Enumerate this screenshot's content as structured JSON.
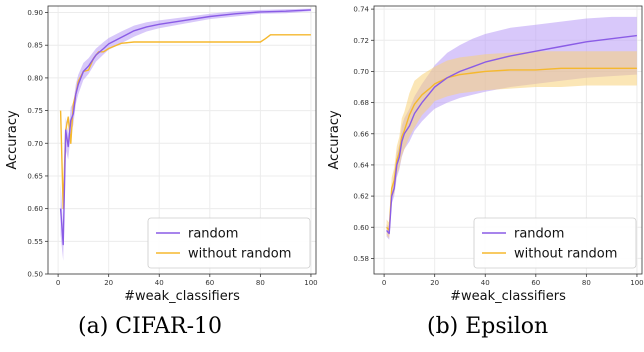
{
  "colors": {
    "random": "#8a5ce6",
    "random_band": "#b89af5",
    "without_random": "#f5b82e",
    "without_random_band": "#f8d27a",
    "grid": "#ececec",
    "axis": "#333333"
  },
  "chart_data": [
    {
      "type": "line",
      "caption": "(a) CIFAR-10",
      "xlabel": "#weak_classifiers",
      "ylabel": "Accuracy",
      "xlim": [
        -4,
        102
      ],
      "ylim": [
        0.5,
        0.91
      ],
      "xticks": [
        0,
        20,
        40,
        60,
        80,
        100
      ],
      "yticks": [
        0.5,
        0.55,
        0.6,
        0.65,
        0.7,
        0.75,
        0.8,
        0.85,
        0.9
      ],
      "ytick_labels": [
        "0.50",
        "0.55",
        "0.60",
        "0.65",
        "0.70",
        "0.75",
        "0.80",
        "0.85",
        "0.90"
      ],
      "grid": true,
      "legend": "bottom-right",
      "series": [
        {
          "name": "random",
          "color": "#8a5ce6",
          "x": [
            1,
            2,
            3,
            4,
            5,
            6,
            7,
            8,
            10,
            12,
            15,
            18,
            20,
            25,
            30,
            35,
            40,
            50,
            60,
            70,
            80,
            90,
            100
          ],
          "y": [
            0.6,
            0.545,
            0.72,
            0.695,
            0.735,
            0.745,
            0.775,
            0.79,
            0.81,
            0.818,
            0.835,
            0.845,
            0.852,
            0.862,
            0.872,
            0.878,
            0.882,
            0.888,
            0.894,
            0.898,
            0.901,
            0.902,
            0.904
          ],
          "lower": [
            0.56,
            0.52,
            0.69,
            0.675,
            0.715,
            0.728,
            0.76,
            0.775,
            0.797,
            0.806,
            0.825,
            0.836,
            0.843,
            0.853,
            0.863,
            0.871,
            0.876,
            0.883,
            0.89,
            0.894,
            0.898,
            0.899,
            0.902
          ],
          "upper": [
            0.64,
            0.57,
            0.74,
            0.715,
            0.755,
            0.762,
            0.79,
            0.805,
            0.823,
            0.83,
            0.845,
            0.855,
            0.861,
            0.871,
            0.88,
            0.885,
            0.888,
            0.893,
            0.898,
            0.902,
            0.904,
            0.905,
            0.906
          ]
        },
        {
          "name": "without random",
          "color": "#f5b82e",
          "x": [
            1,
            2,
            3,
            4,
            5,
            6,
            7,
            8,
            10,
            12,
            14,
            16,
            18,
            20,
            25,
            30,
            40,
            50,
            60,
            70,
            80,
            82,
            84,
            90,
            100
          ],
          "y": [
            0.75,
            0.6,
            0.72,
            0.74,
            0.7,
            0.76,
            0.775,
            0.795,
            0.81,
            0.812,
            0.83,
            0.84,
            0.84,
            0.845,
            0.853,
            0.855,
            0.855,
            0.855,
            0.855,
            0.855,
            0.855,
            0.86,
            0.866,
            0.866,
            0.866
          ]
        }
      ]
    },
    {
      "type": "line",
      "caption": "(b) Epsilon",
      "xlabel": "#weak_classifiers",
      "ylabel": "Accuracy",
      "xlim": [
        -4,
        102
      ],
      "ylim": [
        0.57,
        0.742
      ],
      "xticks": [
        0,
        20,
        40,
        60,
        80,
        100
      ],
      "yticks": [
        0.58,
        0.6,
        0.62,
        0.64,
        0.66,
        0.68,
        0.7,
        0.72,
        0.74
      ],
      "ytick_labels": [
        "0.58",
        "0.60",
        "0.62",
        "0.64",
        "0.66",
        "0.68",
        "0.70",
        "0.72",
        "0.74"
      ],
      "grid": true,
      "legend": "bottom-right",
      "series": [
        {
          "name": "random",
          "color": "#8a5ce6",
          "x": [
            1,
            2,
            3,
            4,
            5,
            6,
            7,
            8,
            10,
            12,
            15,
            18,
            20,
            25,
            30,
            35,
            40,
            50,
            60,
            70,
            80,
            90,
            100
          ],
          "y": [
            0.598,
            0.596,
            0.62,
            0.625,
            0.64,
            0.645,
            0.655,
            0.66,
            0.665,
            0.673,
            0.68,
            0.686,
            0.69,
            0.696,
            0.7,
            0.703,
            0.706,
            0.71,
            0.713,
            0.716,
            0.719,
            0.721,
            0.723
          ],
          "lower": [
            0.594,
            0.592,
            0.615,
            0.62,
            0.632,
            0.637,
            0.645,
            0.65,
            0.655,
            0.662,
            0.668,
            0.673,
            0.676,
            0.68,
            0.683,
            0.685,
            0.687,
            0.69,
            0.692,
            0.694,
            0.696,
            0.697,
            0.698
          ],
          "upper": [
            0.602,
            0.6,
            0.625,
            0.63,
            0.648,
            0.653,
            0.665,
            0.67,
            0.676,
            0.684,
            0.692,
            0.699,
            0.704,
            0.712,
            0.717,
            0.721,
            0.724,
            0.728,
            0.73,
            0.732,
            0.734,
            0.735,
            0.735
          ]
        },
        {
          "name": "without random",
          "color": "#f5b82e",
          "x": [
            1,
            2,
            3,
            4,
            5,
            6,
            7,
            8,
            10,
            12,
            15,
            18,
            20,
            25,
            30,
            35,
            40,
            50,
            60,
            70,
            80,
            90,
            100
          ],
          "y": [
            0.6,
            0.598,
            0.625,
            0.63,
            0.643,
            0.648,
            0.658,
            0.662,
            0.672,
            0.679,
            0.685,
            0.689,
            0.692,
            0.696,
            0.698,
            0.699,
            0.7,
            0.701,
            0.701,
            0.702,
            0.702,
            0.702,
            0.702
          ],
          "lower": [
            0.595,
            0.593,
            0.618,
            0.622,
            0.634,
            0.638,
            0.646,
            0.65,
            0.658,
            0.664,
            0.672,
            0.677,
            0.681,
            0.684,
            0.686,
            0.687,
            0.688,
            0.689,
            0.69,
            0.69,
            0.691,
            0.691,
            0.691
          ],
          "upper": [
            0.605,
            0.603,
            0.632,
            0.638,
            0.652,
            0.658,
            0.67,
            0.674,
            0.686,
            0.694,
            0.698,
            0.701,
            0.703,
            0.707,
            0.709,
            0.71,
            0.711,
            0.712,
            0.713,
            0.713,
            0.713,
            0.713,
            0.713
          ]
        }
      ]
    }
  ]
}
